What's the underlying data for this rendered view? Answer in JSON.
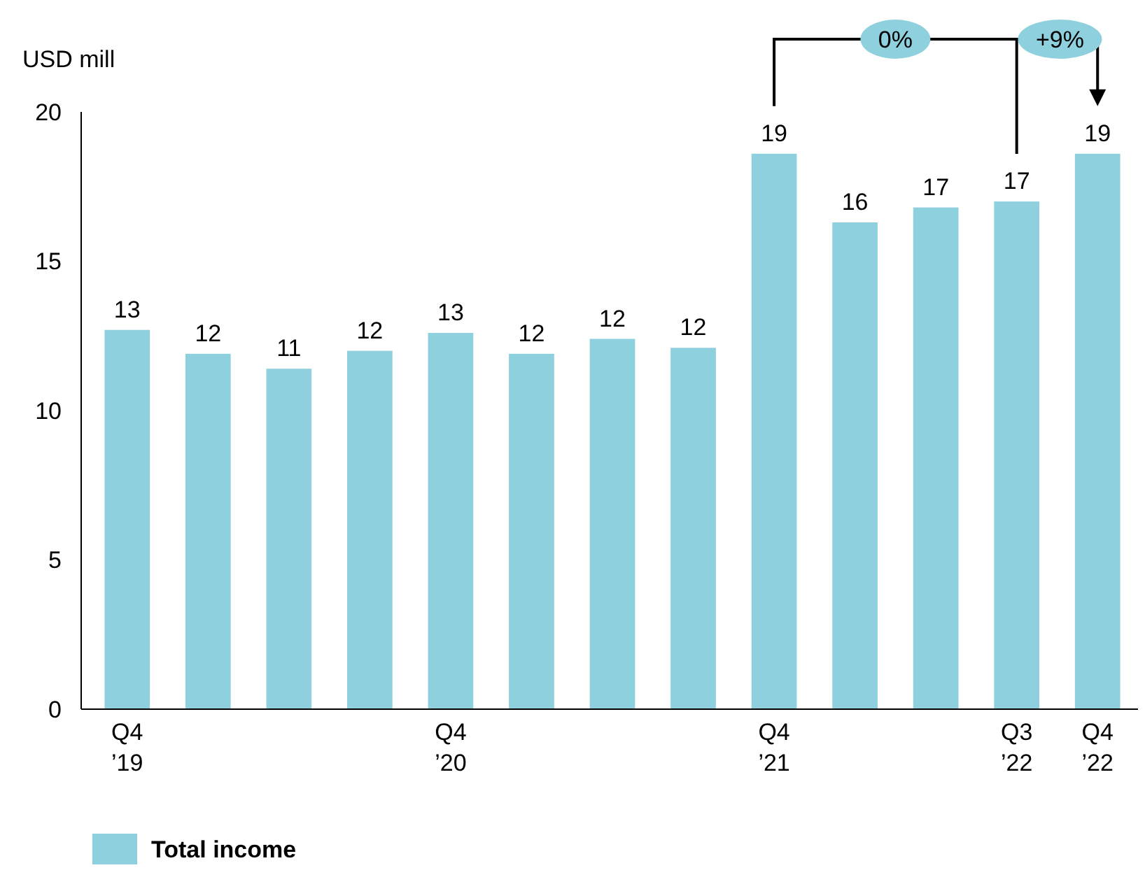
{
  "chart_data": {
    "type": "bar",
    "ylabel": "USD mill",
    "categories": [
      "Q4\n’19",
      null,
      null,
      null,
      "Q4\n’20",
      null,
      null,
      null,
      "Q4\n’21",
      null,
      null,
      "Q3\n’22",
      "Q4\n’22"
    ],
    "series": [
      {
        "name": "Total income",
        "color": "#8ed0dd",
        "values": [
          12.7,
          11.9,
          11.4,
          12.0,
          12.6,
          11.9,
          12.4,
          12.1,
          18.6,
          16.3,
          16.8,
          17.0,
          18.6
        ],
        "value_labels": [
          "13",
          "12",
          "11",
          "12",
          "13",
          "12",
          "12",
          "12",
          "19",
          "16",
          "17",
          "17",
          "19"
        ]
      }
    ],
    "ylim": [
      0,
      20
    ],
    "yticks": [
      0,
      5,
      10,
      15,
      20
    ],
    "grid": false,
    "legend": "bottom left",
    "annotations": [
      "0%",
      "+9%"
    ]
  }
}
